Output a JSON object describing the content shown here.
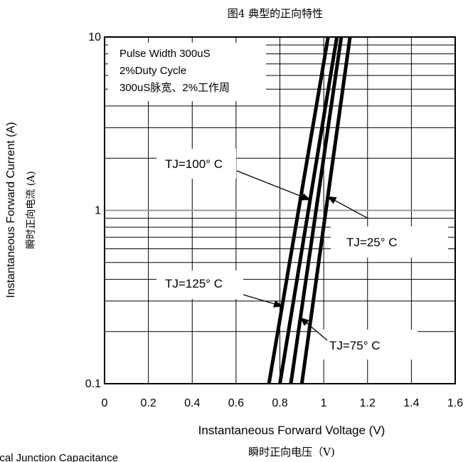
{
  "title": "图4 典型的正向特性",
  "bottom_caption": "ical Junction Capacitance",
  "chart_data": {
    "type": "line",
    "title": "图4 典型的正向特性",
    "xlabel": "Instantaneous Forward Voltage (V)",
    "xlabel_cn": "瞬时正向电压（V)",
    "ylabel": "Instantaneous Forward Current (A)",
    "ylabel_cn": "瞬时正向电流 (A)",
    "xlim": [
      0,
      1.6
    ],
    "ylim": [
      0.1,
      10
    ],
    "yscale": "log",
    "grid": true,
    "x_ticks": [
      "0",
      "0.2",
      "0.4",
      "0.6",
      "0.8",
      "1",
      "1.2",
      "1.4",
      "1.6"
    ],
    "y_ticks": [
      "0.1",
      "1",
      "10"
    ],
    "legend_lines": [
      "Pulse Width 300uS",
      "2%Duty Cycle",
      "300uS脉宽、2%工作周"
    ],
    "series": [
      {
        "name": "TJ=125° C",
        "x": [
          0.75,
          1.02
        ],
        "y": [
          0.1,
          10
        ]
      },
      {
        "name": "TJ=100° C",
        "x": [
          0.8,
          1.06
        ],
        "y": [
          0.1,
          10
        ]
      },
      {
        "name": "TJ=75° C",
        "x": [
          0.85,
          1.08
        ],
        "y": [
          0.1,
          10
        ]
      },
      {
        "name": "TJ=25° C",
        "x": [
          0.9,
          1.12
        ],
        "y": [
          0.1,
          10
        ]
      }
    ],
    "annotations": [
      {
        "text": "TJ=100° C",
        "series": "TJ=100° C"
      },
      {
        "text": "TJ=25° C",
        "series": "TJ=25° C"
      },
      {
        "text": "TJ=125° C",
        "series": "TJ=125° C"
      },
      {
        "text": "TJ=75° C",
        "series": "TJ=75° C"
      }
    ],
    "colors": {
      "line": "#000000",
      "grid": "#000000",
      "highlight_grid": "#999999"
    }
  }
}
